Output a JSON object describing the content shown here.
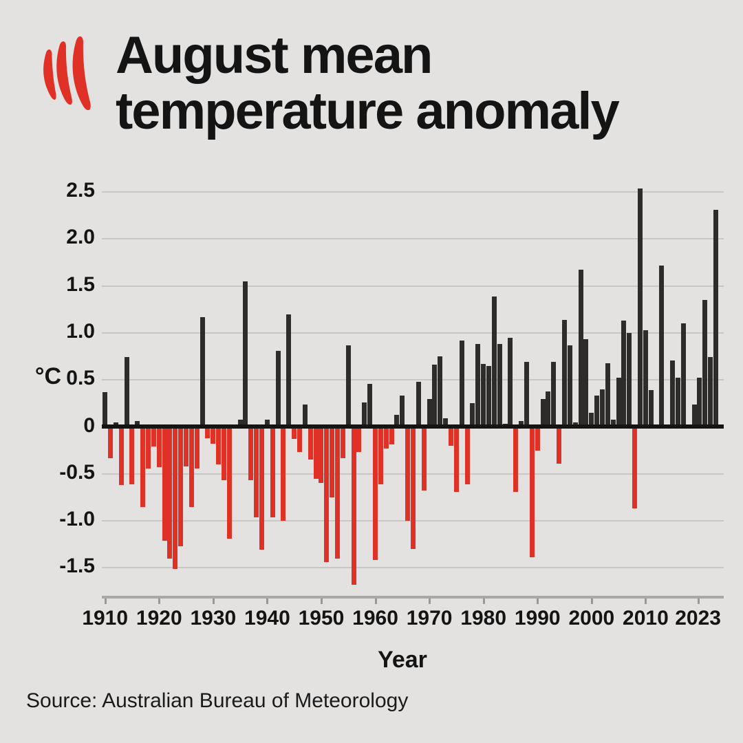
{
  "header": {
    "title_line1": "August mean",
    "title_line2": "temperature anomaly",
    "logo": "sbs-mercury-flame-logo"
  },
  "chart_data": {
    "type": "bar",
    "title": "August mean temperature anomaly",
    "xlabel": "Year",
    "ylabel": "°C",
    "ylim": [
      -1.8,
      2.6
    ],
    "grid": true,
    "legend": "none",
    "positive_color": "#2d2c2b",
    "negative_color": "#e03127",
    "y_ticks": [
      {
        "label": "2.5",
        "value": 2.5
      },
      {
        "label": "2.0",
        "value": 2.0
      },
      {
        "label": "1.5",
        "value": 1.5
      },
      {
        "label": "1.0",
        "value": 1.0
      },
      {
        "label": "0.5",
        "value": 0.5
      },
      {
        "label": "0",
        "value": 0
      },
      {
        "label": "-0.5",
        "value": -0.5
      },
      {
        "label": "-1.0",
        "value": -1.0
      },
      {
        "label": "-1.5",
        "value": -1.5
      }
    ],
    "x_tick_labels": [
      "1910",
      "1920",
      "1930",
      "1940",
      "1950",
      "1960",
      "1970",
      "1980",
      "1990",
      "2000",
      "2010",
      "2023"
    ],
    "year_start": 1910,
    "values": [
      0.37,
      -0.33,
      0.05,
      -0.62,
      0.74,
      -0.61,
      0.06,
      -0.85,
      -0.44,
      -0.21,
      -0.43,
      -1.21,
      -1.4,
      -1.51,
      -1.27,
      -0.42,
      -0.85,
      -0.44,
      1.17,
      -0.12,
      -0.18,
      -0.4,
      -0.57,
      -1.19,
      0.0,
      0.08,
      1.55,
      -0.57,
      -0.96,
      -1.31,
      0.08,
      -0.96,
      0.81,
      -1.0,
      1.2,
      -0.13,
      -0.27,
      0.24,
      -0.35,
      -0.55,
      -0.6,
      -1.44,
      -0.75,
      -1.4,
      -0.33,
      0.87,
      -1.68,
      -0.27,
      0.26,
      0.46,
      -1.42,
      -0.61,
      -0.23,
      -0.19,
      0.13,
      0.33,
      -1.0,
      -1.3,
      0.48,
      -0.68,
      0.3,
      0.66,
      0.75,
      0.09,
      -0.2,
      -0.69,
      0.92,
      -0.61,
      0.25,
      0.88,
      0.67,
      0.65,
      1.39,
      0.88,
      0.03,
      0.95,
      -0.69,
      0.06,
      0.69,
      -1.39,
      -0.25,
      0.3,
      0.38,
      0.69,
      -0.39,
      1.14,
      0.87,
      0.05,
      1.67,
      0.93,
      0.15,
      0.33,
      0.4,
      0.68,
      0.08,
      0.52,
      1.13,
      1.0,
      -0.87,
      2.54,
      1.03,
      0.39,
      0.0,
      1.72,
      0.0,
      0.71,
      0.52,
      1.1,
      0.0,
      0.24,
      0.52,
      1.35,
      0.74,
      2.31
    ]
  },
  "footer": {
    "source": "Source: Australian Bureau of Meteorology"
  },
  "colors": {
    "background": "#e3e2e1",
    "bar_positive": "#2d2c2b",
    "bar_negative": "#e03127",
    "gridline": "#c8c7c5",
    "zero_axis": "#141414",
    "bottom_axis": "#a9a8a6",
    "logo_red": "#e03127"
  }
}
